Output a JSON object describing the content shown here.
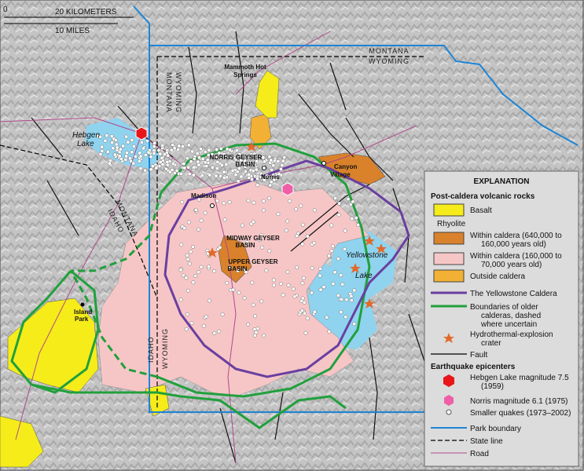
{
  "scale_bar": {
    "zero": "0",
    "kilometers": "20 KILOMETERS",
    "miles": "10 MILES"
  },
  "map_labels": {
    "montana_north": "MONTANA",
    "wyoming_north": "WYOMING",
    "mammoth": [
      "Mammoth Hot",
      "Springs"
    ],
    "montana_vertical": "MONTANA",
    "wyoming_vertical": "WYOMING",
    "hebgen_lake": [
      "Hebgen",
      "Lake"
    ],
    "norris_basin": [
      "NORRIS GEYSER",
      "BASIN"
    ],
    "norris": "Norris",
    "canyon": [
      "Canyon",
      "Village"
    ],
    "madison": "Madison",
    "montana_diagonal": "MONTANA",
    "idaho_diagonal": "IDAHO",
    "midway": [
      "MIDWAY GEYSER",
      "BASIN"
    ],
    "upper": [
      "UPPER GEYSER",
      "BASIN"
    ],
    "yellowstone_lake": [
      "Yellowstone",
      "Lake"
    ],
    "island_park": [
      "Island",
      "Park"
    ],
    "idaho_vertical": "IDAHO",
    "wyoming_south": "WYOMING"
  },
  "legend": {
    "title": "EXPLANATION",
    "volcanic_heading": "Post-caldera volcanic rocks",
    "basalt": "Basalt",
    "rhyolite": "Rhyolite",
    "rhyolite_old": [
      "Within caldera (640,000 to",
      "160,000 years old)"
    ],
    "rhyolite_young": [
      "Within caldera (160,000 to",
      "70,000 years old)"
    ],
    "outside_caldera": "Outside caldera",
    "caldera": "The Yellowstone Caldera",
    "older_calderas": [
      "Boundaries of older",
      "calderas, dashed",
      "where uncertain"
    ],
    "crater": [
      "Hydrothermal-explosion",
      "crater"
    ],
    "fault": "Fault",
    "quake_heading": "Earthquake epicenters",
    "hebgen": [
      "Hebgen Lake magnitude 7.5",
      "(1959)"
    ],
    "norris": "Norris magnitude 6.1 (1975)",
    "smaller": "Smaller quakes (1973–2002)",
    "park": "Park boundary",
    "state": "State line",
    "road": "Road"
  }
}
